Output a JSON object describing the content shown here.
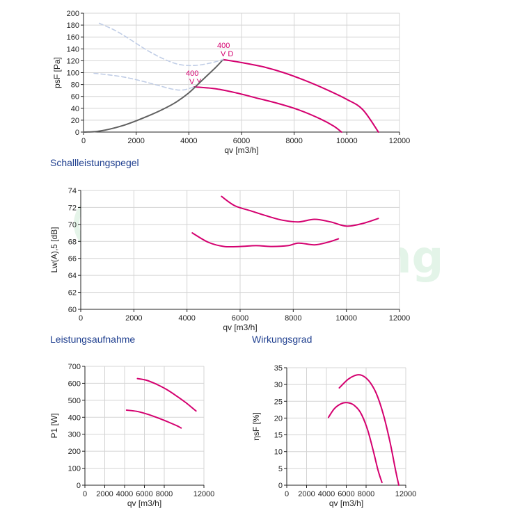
{
  "sections": {
    "sound_title": "Schallleistungspegel",
    "power_title": "Leistungsaufnahme",
    "efficiency_title": "Wirkungsgrad"
  },
  "colors": {
    "primary_curve": "#d4006f",
    "system_curve": "#606060",
    "dashed_curve": "#c0cde6",
    "grid": "#d4d4d4",
    "axis": "#222222",
    "title": "#1f3f8f",
    "watermark": "#2aa84a"
  },
  "watermark_text": "hongsheng",
  "chart_data": [
    {
      "id": "pressure",
      "type": "line",
      "xlabel": "qv [m3/h]",
      "ylabel": "psF [Pa]",
      "xlim": [
        0,
        12000
      ],
      "ylim": [
        0,
        200
      ],
      "xticks": [
        0,
        2000,
        4000,
        6000,
        8000,
        10000,
        12000
      ],
      "yticks": [
        0,
        20,
        40,
        60,
        80,
        100,
        120,
        140,
        160,
        180,
        200
      ],
      "grid": true,
      "series": [
        {
          "name": "400 V D",
          "label_lines": [
            "400",
            "V D"
          ],
          "label_at": [
            5200,
            140
          ],
          "style": "solid",
          "x": [
            5300,
            6000,
            6800,
            7600,
            8400,
            9200,
            10000,
            10600,
            11200
          ],
          "y": [
            122,
            117,
            110,
            100,
            87,
            72,
            55,
            38,
            0
          ]
        },
        {
          "name": "400 V Y",
          "label_lines": [
            "400",
            "V Y"
          ],
          "label_at": [
            3950,
            98
          ],
          "style": "solid",
          "x": [
            4200,
            5000,
            5800,
            6600,
            7400,
            8200,
            9000,
            9500,
            9800
          ],
          "y": [
            76,
            73,
            66,
            57,
            48,
            37,
            22,
            10,
            0
          ]
        },
        {
          "style": "system",
          "x": [
            0,
            500,
            1000,
            1500,
            2000,
            2500,
            3000,
            3500,
            4000,
            4500,
            5000,
            5300
          ],
          "y": [
            0,
            1,
            5,
            11,
            19,
            28,
            38,
            50,
            66,
            87,
            108,
            122
          ]
        },
        {
          "style": "dashed",
          "x": [
            600,
            1200,
            1800,
            2400,
            3000,
            3600,
            4200,
            4800,
            5300
          ],
          "y": [
            183,
            171,
            155,
            138,
            124,
            114,
            112,
            116,
            122
          ]
        },
        {
          "style": "dashed",
          "x": [
            400,
            1000,
            1600,
            2200,
            2800,
            3400,
            3800,
            4200
          ],
          "y": [
            99,
            96,
            92,
            86,
            79,
            72,
            71,
            76
          ]
        }
      ]
    },
    {
      "id": "sound",
      "type": "line",
      "xlabel": "qv [m3/h]",
      "ylabel": "Lw(A),5 [dB]",
      "xlim": [
        0,
        12000
      ],
      "ylim": [
        60,
        74
      ],
      "xticks": [
        0,
        2000,
        4000,
        6000,
        8000,
        10000,
        12000
      ],
      "yticks": [
        60,
        62,
        64,
        66,
        68,
        70,
        72,
        74
      ],
      "grid": true,
      "series": [
        {
          "style": "solid",
          "x": [
            5300,
            5800,
            6400,
            7000,
            7600,
            8200,
            8800,
            9400,
            10000,
            10600,
            11200
          ],
          "y": [
            73.3,
            72.2,
            71.6,
            71.0,
            70.5,
            70.3,
            70.6,
            70.3,
            69.8,
            70.1,
            70.7
          ]
        },
        {
          "style": "solid",
          "x": [
            4200,
            4800,
            5400,
            6000,
            6600,
            7200,
            7800,
            8200,
            8800,
            9300,
            9700
          ],
          "y": [
            69.0,
            67.9,
            67.4,
            67.4,
            67.5,
            67.4,
            67.5,
            67.8,
            67.6,
            67.9,
            68.3
          ]
        }
      ]
    },
    {
      "id": "power",
      "type": "line",
      "xlabel": "qv [m3/h]",
      "ylabel": "P1 [W]",
      "xlim": [
        0,
        12000
      ],
      "ylim": [
        0,
        700
      ],
      "xticks": [
        0,
        2000,
        4000,
        6000,
        8000,
        12000
      ],
      "yticks": [
        0,
        100,
        200,
        300,
        400,
        500,
        600,
        700
      ],
      "grid": true,
      "series": [
        {
          "style": "solid",
          "x": [
            5300,
            6200,
            7200,
            8200,
            9200,
            10200,
            11200
          ],
          "y": [
            628,
            618,
            595,
            565,
            527,
            485,
            437
          ]
        },
        {
          "style": "solid",
          "x": [
            4200,
            5200,
            6200,
            7200,
            8200,
            9200,
            9700
          ],
          "y": [
            442,
            435,
            420,
            400,
            377,
            352,
            337
          ]
        }
      ]
    },
    {
      "id": "efficiency",
      "type": "line",
      "xlabel": "qv [m3/h]",
      "ylabel": "ηsF [%]",
      "xlim": [
        0,
        12000
      ],
      "ylim": [
        0,
        35
      ],
      "xticks": [
        0,
        2000,
        4000,
        6000,
        8000,
        12000
      ],
      "yticks": [
        0,
        5,
        10,
        15,
        20,
        25,
        30,
        35
      ],
      "grid": true,
      "series": [
        {
          "style": "solid",
          "x": [
            5300,
            6200,
            7000,
            7600,
            8300,
            9000,
            9700,
            10400,
            11000,
            11300
          ],
          "y": [
            29.0,
            31.6,
            32.8,
            32.7,
            31.0,
            27.5,
            21.5,
            13.0,
            4.0,
            0
          ]
        },
        {
          "style": "solid",
          "x": [
            4200,
            4800,
            5500,
            6100,
            6700,
            7400,
            8100,
            8700,
            9200,
            9600
          ],
          "y": [
            20.2,
            22.8,
            24.3,
            24.6,
            24.0,
            21.8,
            17.0,
            10.5,
            4.5,
            0.8
          ]
        }
      ]
    }
  ]
}
